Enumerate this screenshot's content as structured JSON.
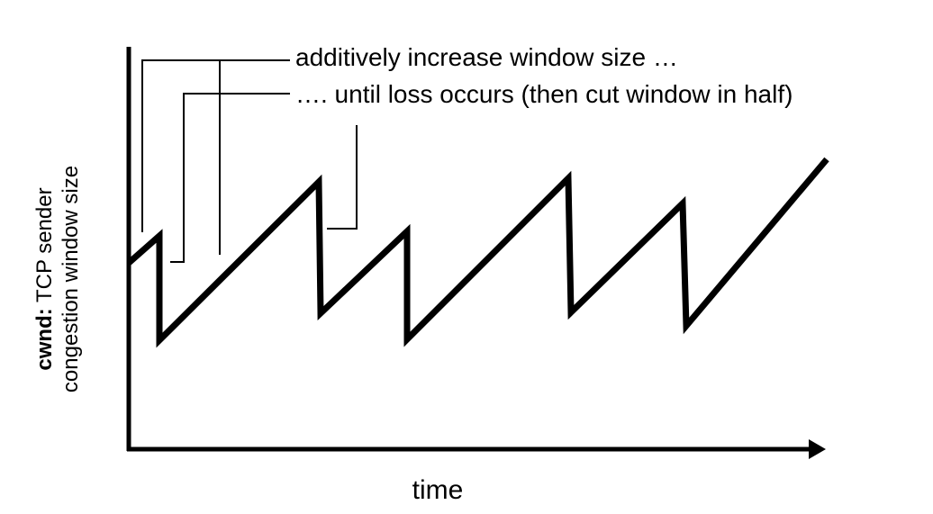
{
  "diagram": {
    "type": "line",
    "annotations": {
      "additive": "additively increase window size …",
      "loss": "…. until loss occurs (then cut window in half)"
    },
    "ylabel_bold": "cwnd:",
    "ylabel_line1": " TCP sender",
    "ylabel_line2": "congestion window size",
    "xlabel": "time",
    "colors": {
      "line": "#000000",
      "background": "#ffffff"
    }
  }
}
